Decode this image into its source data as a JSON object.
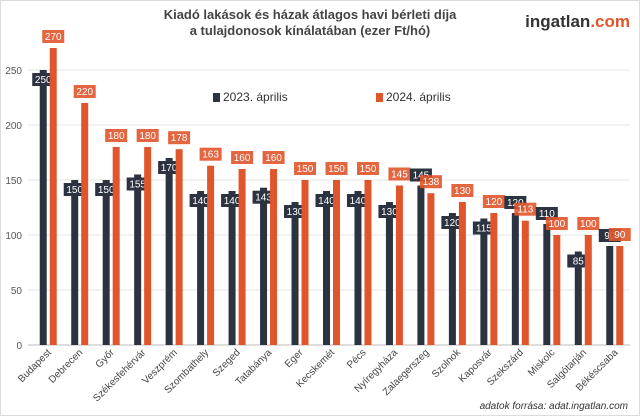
{
  "header": {
    "title_line1": "Kiadó lakások és házak átlagos havi bérleti díja",
    "title_line2": "a tulajdonosok kínálatában (ezer Ft/hó)",
    "logo_main": "ingatlan",
    "logo_suffix": ".com"
  },
  "footer": {
    "source": "adatok forrása: adat.ingatlan.com"
  },
  "chart_data": {
    "type": "bar",
    "title": "Kiadó lakások és házak átlagos havi bérleti díja a tulajdonosok kínálatában (ezer Ft/hó)",
    "categories": [
      "Budapest",
      "Debrecen",
      "Győr",
      "Székesfehérvár",
      "Veszprém",
      "Szombathely",
      "Szeged",
      "Tatabánya",
      "Eger",
      "Kecskemét",
      "Pécs",
      "Nyíregyháza",
      "Zalaegerszeg",
      "Szolnok",
      "Kaposvár",
      "Szekszárd",
      "Miskolc",
      "Salgótarján",
      "Békéscsaba"
    ],
    "series": [
      {
        "name": "2023. április",
        "color": "#2b3240",
        "values": [
          250,
          150,
          150,
          155,
          170,
          140,
          140,
          143,
          130,
          140,
          140,
          130,
          145,
          120,
          115,
          120,
          110,
          85,
          90
        ]
      },
      {
        "name": "2024. április",
        "color": "#e0552b",
        "values": [
          270,
          220,
          180,
          180,
          178,
          163,
          160,
          160,
          150,
          150,
          150,
          145,
          138,
          130,
          120,
          113,
          100,
          100,
          90
        ]
      }
    ],
    "ylim": [
      0,
      275
    ],
    "yticks": [
      0,
      50,
      100,
      150,
      200,
      250
    ],
    "grid": true,
    "legend": "top-center",
    "data_labels": true
  }
}
